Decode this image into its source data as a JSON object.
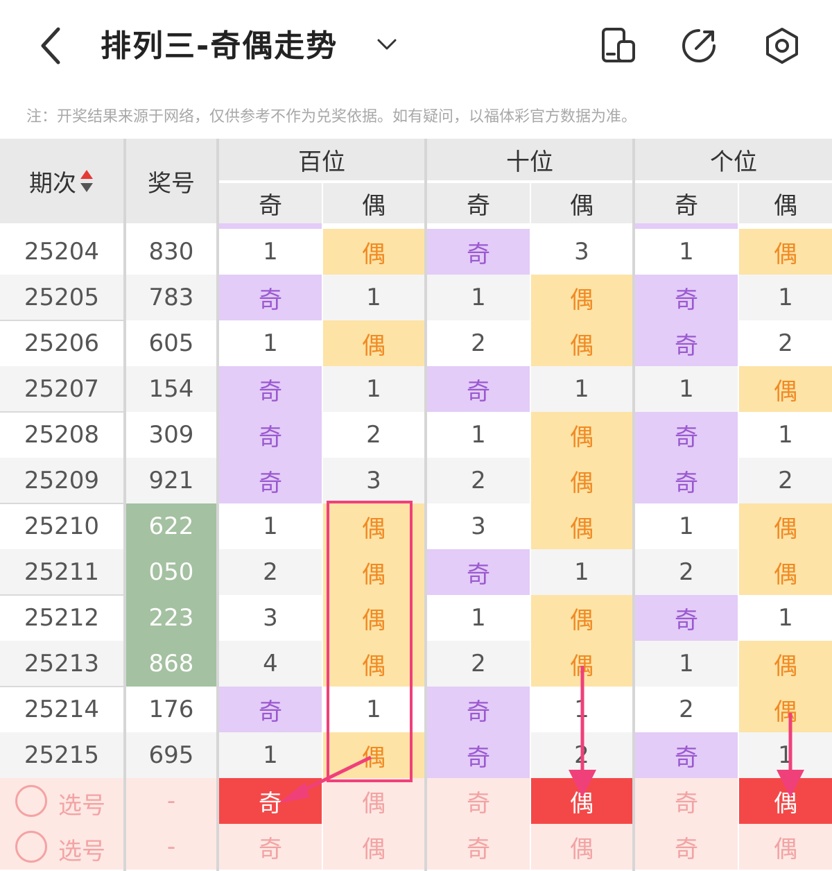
{
  "header": {
    "title": "排列三-奇偶走势"
  },
  "notice": "注：开奖结果来源于网络，仅供参考不作为兑奖依据。如有疑问，以福体彩官方数据为准。",
  "columns": {
    "period": "期次",
    "number": "奖号",
    "groups": [
      "百位",
      "十位",
      "个位"
    ],
    "odd": "奇",
    "even": "偶"
  },
  "rows": [
    {
      "period": "25204",
      "number": "830",
      "cells": [
        "1",
        "偶",
        "奇",
        "3",
        "1",
        "偶"
      ]
    },
    {
      "period": "25205",
      "number": "783",
      "cells": [
        "奇",
        "1",
        "1",
        "偶",
        "奇",
        "1"
      ]
    },
    {
      "period": "25206",
      "number": "605",
      "cells": [
        "1",
        "偶",
        "2",
        "偶",
        "奇",
        "2"
      ]
    },
    {
      "period": "25207",
      "number": "154",
      "cells": [
        "奇",
        "1",
        "奇",
        "1",
        "1",
        "偶"
      ]
    },
    {
      "period": "25208",
      "number": "309",
      "cells": [
        "奇",
        "2",
        "1",
        "偶",
        "奇",
        "1"
      ]
    },
    {
      "period": "25209",
      "number": "921",
      "cells": [
        "奇",
        "3",
        "2",
        "偶",
        "奇",
        "2"
      ]
    },
    {
      "period": "25210",
      "number": "622",
      "cells": [
        "1",
        "偶",
        "3",
        "偶",
        "1",
        "偶"
      ]
    },
    {
      "period": "25211",
      "number": "050",
      "cells": [
        "2",
        "偶",
        "奇",
        "1",
        "2",
        "偶"
      ]
    },
    {
      "period": "25212",
      "number": "223",
      "cells": [
        "3",
        "偶",
        "1",
        "偶",
        "奇",
        "1"
      ]
    },
    {
      "period": "25213",
      "number": "868",
      "cells": [
        "4",
        "偶",
        "2",
        "偶",
        "1",
        "偶"
      ]
    },
    {
      "period": "25214",
      "number": "176",
      "cells": [
        "奇",
        "1",
        "奇",
        "1",
        "2",
        "偶"
      ]
    },
    {
      "period": "25215",
      "number": "695",
      "cells": [
        "1",
        "偶",
        "奇",
        "2",
        "奇",
        "1"
      ]
    }
  ],
  "highlight_numbers": [
    "25210",
    "25211",
    "25212",
    "25213"
  ],
  "pick_rows": [
    {
      "label": "选号",
      "number": "-",
      "cells": [
        "奇",
        "偶",
        "奇",
        "偶",
        "奇",
        "偶"
      ],
      "selected": [
        true,
        false,
        false,
        true,
        false,
        true
      ]
    },
    {
      "label": "选号",
      "number": "-",
      "cells": [
        "奇",
        "偶",
        "奇",
        "偶",
        "奇",
        "偶"
      ],
      "selected": [
        false,
        false,
        false,
        false,
        false,
        false
      ]
    }
  ],
  "colors": {
    "odd_bg": "#e3ccf7",
    "odd_fg": "#9b59d0",
    "even_bg": "#fde3a6",
    "even_fg": "#f08a24",
    "hot": "#a4c1a1",
    "selected": "#f44848",
    "annotation": "#f0407a"
  },
  "icons": [
    "back-arrow-icon",
    "chevron-down-icon",
    "layout-toggle-icon",
    "share-icon",
    "settings-icon",
    "sort-arrows-icon"
  ]
}
